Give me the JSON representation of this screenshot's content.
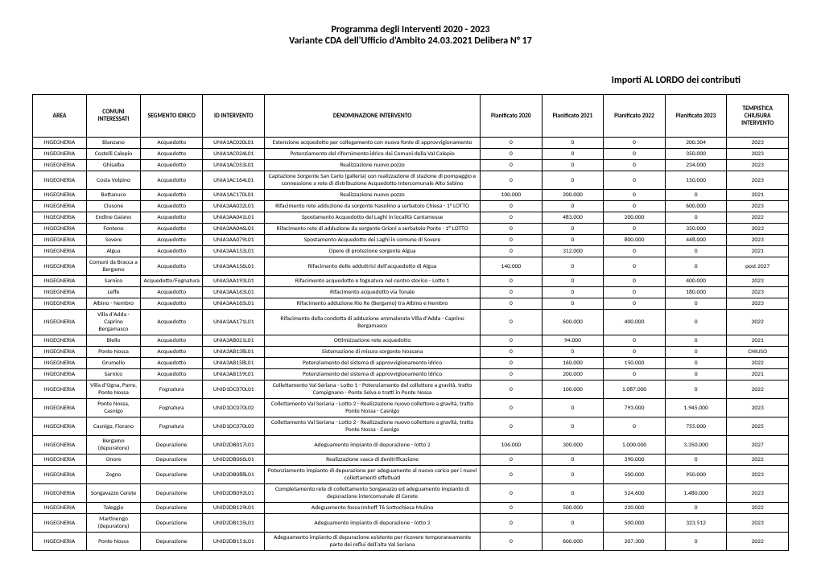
{
  "title_line1": "Programma degli Interventi 2020 - 2023",
  "title_line2": "Variante CDA dell'Ufficio d'Ambito 24.03.2021 Delibera N° 17",
  "subtitle": "Importi AL LORDO dei contributi",
  "columns": [
    "AREA",
    "COMUNI INTERESSATI",
    "SEGMENTO IDRICO",
    "ID INTERVENTO",
    "DENOMINAZIONE INTERVENTO",
    "Pianificato 2020",
    "Pianificato 2021",
    "Pianificato 2022",
    "Pianificato 2023",
    "TEMPISTICA CHIUSURA INTERVENTO"
  ],
  "rows": [
    [
      "INGEGNERIA",
      "Bianzano",
      "Acquedotto",
      "UNIA1AC020L01",
      "Estensione acquedotto per collegamento con nuova fonte di approvvigionamento",
      "0",
      "0",
      "0",
      "200.304",
      "2023"
    ],
    [
      "INGEGNERIA",
      "Costelli Calepio",
      "Acquedotto",
      "UNIA1AC024L01",
      "Potenziamento del rifornimento idrico dei Comuni della Val Calepio",
      "0",
      "0",
      "0",
      "350.000",
      "2023"
    ],
    [
      "INGEGNERIA",
      "Ghisalba",
      "Acquedotto",
      "UNIA1AC053L01",
      "Realizzazione nuovo pozzo",
      "0",
      "0",
      "0",
      "234.000",
      "2023"
    ],
    [
      "INGEGNERIA",
      "Costa Volpino",
      "Acquedotto",
      "UNIA1AC164L01",
      "Captazione Sorgente San Carlo (galleria) con realizzazione di stazione di pompaggio e connessione a rete di distribuzione Acquedotto Intercomunale Alto Sebino",
      "0",
      "0",
      "0",
      "150.000",
      "2023"
    ],
    [
      "INGEGNERIA",
      "Bottanuco",
      "Acquedotto",
      "UNIA1AC170L01",
      "Realizzazione nuovo pozzo",
      "100.000",
      "200.000",
      "0",
      "0",
      "2021"
    ],
    [
      "INGEGNERIA",
      "Clusone",
      "Acquedotto",
      "UNIA3AA032L01",
      "Rifacimento rete adduzione da sorgente Nasolino a serbatoio Chiesa - 1° LOTTO",
      "0",
      "0",
      "0",
      "600.000",
      "2023"
    ],
    [
      "INGEGNERIA",
      "Endine Gaiano",
      "Acquedotto",
      "UNIA3AA041L01",
      "Spostamento Acquedotto dei Laghi in località Cantamesse",
      "0",
      "483.000",
      "200.000",
      "0",
      "2022"
    ],
    [
      "INGEGNERIA",
      "Fonteno",
      "Acquedotto",
      "UNIA3AA046L01",
      "Rifacimento rete di adduzione da sorgente Grioni a serbatoio Ponte - 1° LOTTO",
      "0",
      "0",
      "0",
      "350.000",
      "2023"
    ],
    [
      "INGEGNERIA",
      "Sovere",
      "Acquedotto",
      "UNIA3AA079L01",
      "Spostamento Acquedotto dei Laghi in comune di Sovere",
      "0",
      "0",
      "800.000",
      "448.000",
      "2023"
    ],
    [
      "INGEGNERIA",
      "Algua",
      "Acquedotto",
      "UNIA3AA153L01",
      "Opere di protezione sorgente Algua",
      "0",
      "312.000",
      "0",
      "0",
      "2021"
    ],
    [
      "INGEGNERIA",
      "Comuni da Bracca a Bergamo",
      "Acquedotto",
      "UNIA3AA156L01",
      "Rifacimento delle adduttrici dell'acquedotto di Algua",
      "140.000",
      "0",
      "0",
      "0",
      "post 2027"
    ],
    [
      "INGEGNERIA",
      "Sarnico",
      "Acquedotto/Fognatura",
      "UNIA3AA193L01",
      "Rifacimento acquedotto e fognatura nel centro storico - Lotto 1",
      "0",
      "0",
      "0",
      "400.000",
      "2023"
    ],
    [
      "INGEGNERIA",
      "Leffe",
      "Acquedotto",
      "UNIA3AA163L01",
      "Rifacimento acquedotto via Tonale",
      "0",
      "0",
      "0",
      "180.000",
      "2023"
    ],
    [
      "INGEGNERIA",
      "Albino - Nembro",
      "Acquedotto",
      "UNIA3AA165L01",
      "Rifacimento adduzione Rio Re (Bergamo) tra Albino e Nembro",
      "0",
      "0",
      "0",
      "0",
      "2023"
    ],
    [
      "INGEGNERIA",
      "Villa d'Adda - Caprino Bergamasco",
      "Acquedotto",
      "UNIA3AA171L01",
      "Rifacimento della condotta di adduzione ammalorata Villa d'Adda - Caprino Bergamasco",
      "0",
      "600.000",
      "400.000",
      "0",
      "2022"
    ],
    [
      "INGEGNERIA",
      "Blello",
      "Acquedotto",
      "UNIA3AB021L01",
      "Ottimizzazione rete acquedotto",
      "0",
      "94.000",
      "0",
      "0",
      "2021"
    ],
    [
      "INGEGNERIA",
      "Ponte Nossa",
      "Acquedotto",
      "UNIA3AB138L01",
      "Sistemazione di misura sorgente Nossana",
      "0",
      "0",
      "0",
      "0",
      "CHIUSO"
    ],
    [
      "INGEGNERIA",
      "Grumello",
      "Acquedotto",
      "UNIA3AB158L01",
      "Potenziamento del sistema di approvvigionamento idrico",
      "0",
      "160.000",
      "150.000",
      "0",
      "2022"
    ],
    [
      "INGEGNERIA",
      "Sarnico",
      "Acquedotto",
      "UNIA3AB159L01",
      "Potenziamento del sistema di approvvigionamento idrico",
      "0",
      "200.000",
      "0",
      "0",
      "2021"
    ],
    [
      "INGEGNERIA",
      "Villa d'Ogna, Parre, Ponte Nossa",
      "Fognatura",
      "UNID1DC070L01",
      "Collettamento Val Seriana - Lotto 1 - Potenziamento del collettore a gravità, tratto Campignano - Ponte Selva e tratti in Ponte Nossa",
      "0",
      "100.000",
      "1.087.000",
      "0",
      "2022"
    ],
    [
      "INGEGNERIA",
      "Ponte Nossa, Casnigo",
      "Fognatura",
      "UNID1DC070L02",
      "Collettamento Val Seriana - Lotto 2 - Realizzazione nuovo collettore a gravità, tratto Ponte Nossa - Casnigo",
      "0",
      "0",
      "793.000",
      "1.945.000",
      "2023"
    ],
    [
      "INGEGNERIA",
      "Casnigo, Fiorano",
      "Fognatura",
      "UNID1DC070L03",
      "Collettamento Val Seriana - Lotto 2 - Realizzazione nuovo collettore a gravità, tratto Ponte Nossa - Casnigo",
      "0",
      "0",
      "0",
      "755.000",
      "2025"
    ],
    [
      "INGEGNERIA",
      "Bergamo (depuratore)",
      "Depurazione",
      "UNID2DB017L01",
      "Adeguamento impianto di depurazione - lotto 2",
      "106.000",
      "300.000",
      "1.000.000",
      "3.350.000",
      "2027"
    ],
    [
      "INGEGNERIA",
      "Onore",
      "Depurazione",
      "UNID2DB066L01",
      "Realizzazione vasca di denitrificazione",
      "0",
      "0",
      "390.000",
      "0",
      "2022"
    ],
    [
      "INGEGNERIA",
      "Zogno",
      "Depurazione",
      "UNID2DB088L01",
      "Potenziamento impianto di depurazione per adeguamento al nuovo carico per i nuovi collettamenti effettuati",
      "0",
      "0",
      "500.000",
      "950.000",
      "2023"
    ],
    [
      "INGEGNERIA",
      "Songavazzo Cerete",
      "Depurazione",
      "UNID2DB092L01",
      "Completamento rete di collettamento Songavazzo ed adeguamento impianto di depurazione intercomunale di Cerete",
      "0",
      "0",
      "524.600",
      "1.480.000",
      "2023"
    ],
    [
      "INGEGNERIA",
      "Taleggio",
      "Depurazione",
      "UNID2DB129L01",
      "Adeguamento fossa Imhoff T6 Sottochiesa Mulino",
      "0",
      "500.000",
      "220.000",
      "0",
      "2022"
    ],
    [
      "INGEGNERIA",
      "Martinengo (depuratore)",
      "Depurazione",
      "UNID2DB135L01",
      "Adeguamento impianto di depurazione - lotto 2",
      "0",
      "0",
      "500.000",
      "323.512",
      "2023"
    ],
    [
      "INGEGNERIA",
      "Ponte Nossa",
      "Depurazione",
      "UNID2DB151L01",
      "Adeguamento impianto di depurazione esistente per ricevere temporaneamente parte dei reflui dell'alta Val Seriana",
      "0",
      "600.000",
      "207.300",
      "0",
      "2022"
    ]
  ],
  "colors": {
    "border": "#000000",
    "bg": "#ffffff",
    "text": "#000000"
  },
  "fonts": {
    "body": "Calibri, Arial, sans-serif",
    "title_size": 12,
    "cell_size": 7.5
  }
}
